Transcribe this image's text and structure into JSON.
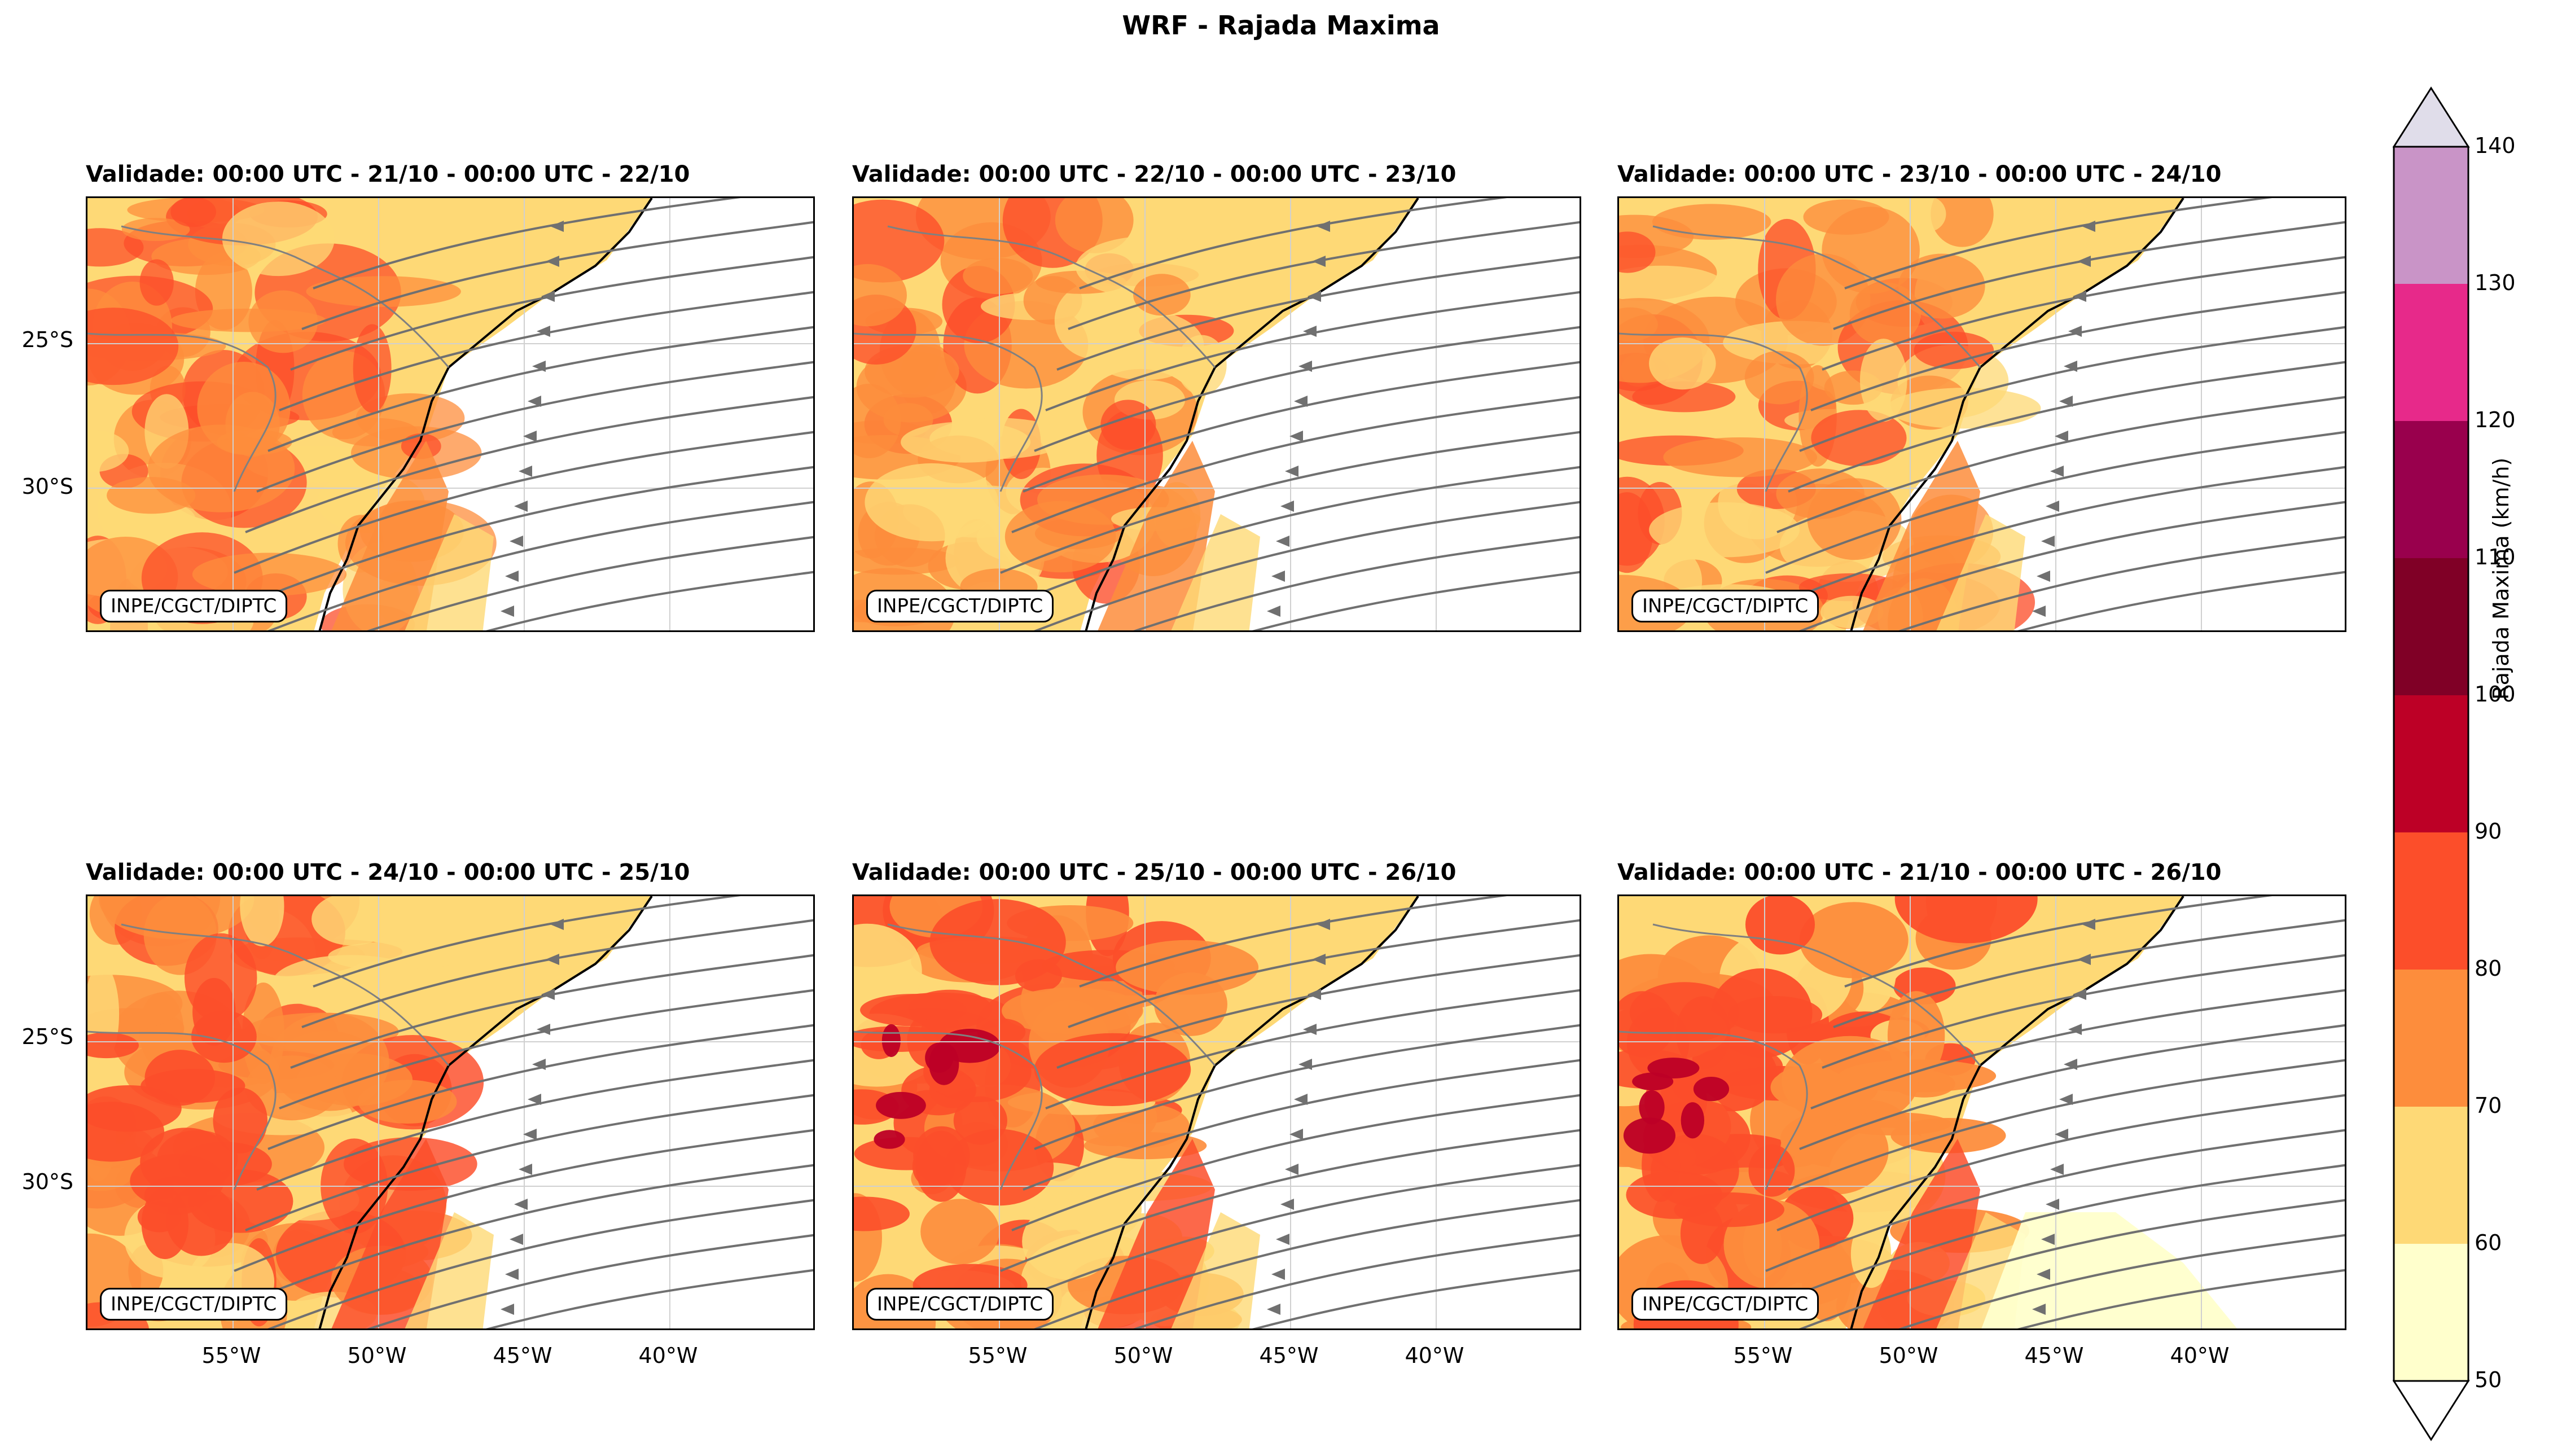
{
  "figure": {
    "title": "WRF - Rajada Maxima",
    "credit": "INPE/CGCT/DIPTC",
    "latitude_labels": [
      "25°S",
      "30°S"
    ],
    "longitude_labels": [
      "55°W",
      "50°W",
      "45°W",
      "40°W"
    ]
  },
  "panels": [
    {
      "title": "Validade: 00:00 UTC - 21/10 - 00:00 UTC - 22/10"
    },
    {
      "title": "Validade: 00:00 UTC - 22/10 - 00:00 UTC - 23/10"
    },
    {
      "title": "Validade: 00:00 UTC - 23/10 - 00:00 UTC - 24/10"
    },
    {
      "title": "Validade: 00:00 UTC - 24/10 - 00:00 UTC - 25/10"
    },
    {
      "title": "Validade: 00:00 UTC - 25/10 - 00:00 UTC - 26/10"
    },
    {
      "title": "Validade: 00:00 UTC - 21/10 - 00:00 UTC - 26/10"
    }
  ],
  "colorbar": {
    "label": "Rajada Maxima (km/h)",
    "ticks": [
      "50",
      "60",
      "70",
      "80",
      "90",
      "100",
      "110",
      "120",
      "130",
      "140"
    ],
    "colors": [
      "#ffffcc",
      "#fed976",
      "#fd8d3c",
      "#fc4e2a",
      "#bd0026",
      "#800026",
      "#99004d",
      "#e7298a",
      "#c994c7",
      "#e0ddea"
    ]
  },
  "map_colors": {
    "land_line": "#808080",
    "coast_line": "#000000",
    "streamline": "#707070"
  }
}
